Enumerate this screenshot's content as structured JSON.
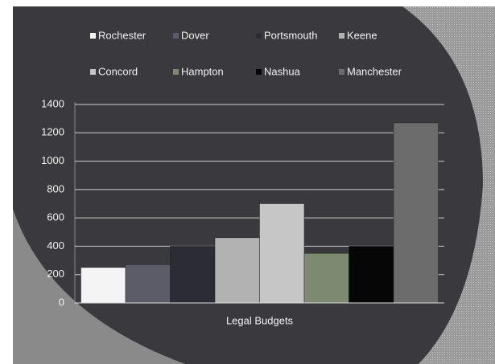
{
  "chart_data": {
    "type": "bar",
    "categories": [
      "Legal Budgets"
    ],
    "series": [
      {
        "name": "Rochester",
        "color": "#f4f4f4",
        "values": [
          250
        ]
      },
      {
        "name": "Dover",
        "color": "#5c5c68",
        "values": [
          270
        ]
      },
      {
        "name": "Portsmouth",
        "color": "#2c2c34",
        "values": [
          400
        ]
      },
      {
        "name": "Keene",
        "color": "#b2b2b2",
        "values": [
          460
        ]
      },
      {
        "name": "Concord",
        "color": "#c6c6c6",
        "values": [
          700
        ]
      },
      {
        "name": "Hampton",
        "color": "#7d8a72",
        "values": [
          350
        ]
      },
      {
        "name": "Nashua",
        "color": "#060606",
        "values": [
          400
        ]
      },
      {
        "name": "Manchester",
        "color": "#6c6c6c",
        "values": [
          1270
        ]
      }
    ],
    "ylim": [
      0,
      1400
    ],
    "yticks": [
      0,
      200,
      400,
      600,
      800,
      1000,
      1200,
      1400
    ],
    "grid": true
  }
}
